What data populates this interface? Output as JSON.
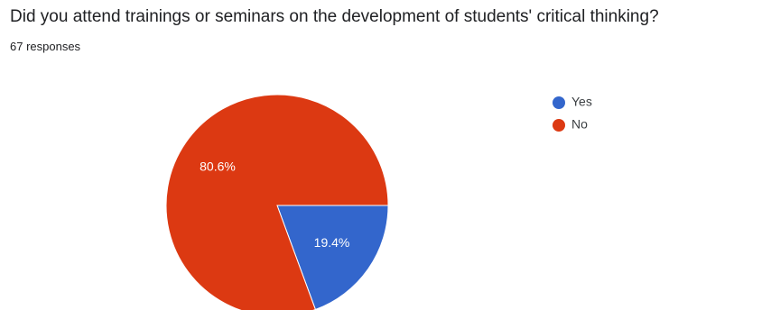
{
  "question": {
    "title": "Did you attend trainings or seminars on the development of students' critical thinking?",
    "responses_label": "67 responses"
  },
  "chart_data": {
    "type": "pie",
    "title": "Did you attend trainings or seminars on the development of students' critical thinking?",
    "total_responses": 67,
    "series": [
      {
        "name": "Yes",
        "value": 19.4,
        "label": "19.4%",
        "color": "#3366cc"
      },
      {
        "name": "No",
        "value": 80.6,
        "label": "80.6%",
        "color": "#dc3912"
      }
    ],
    "legend_position": "right",
    "start_angle_deg": 90,
    "direction": "clockwise"
  }
}
